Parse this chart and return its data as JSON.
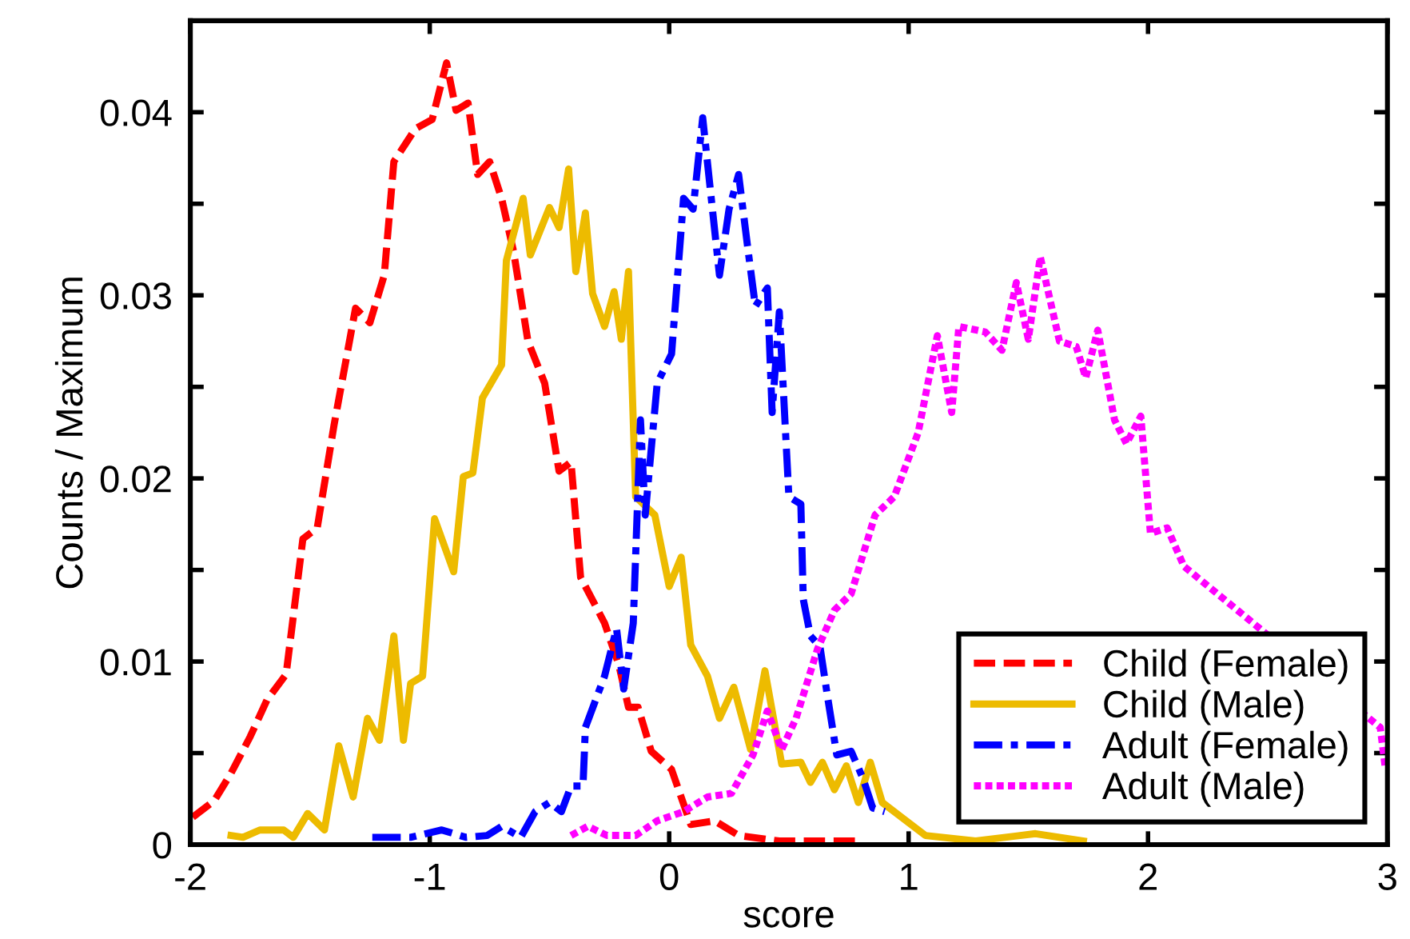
{
  "chart_data": {
    "type": "line",
    "xlabel": "score",
    "ylabel": "Counts / Maximum",
    "xlim": [
      -2,
      3
    ],
    "xticks": [
      -2,
      -1,
      0,
      1,
      2,
      3
    ],
    "ylim": [
      0,
      0.045
    ],
    "yticks": [
      0,
      {
        "value": 0.005,
        "label": null
      },
      0.01,
      {
        "value": 0.015,
        "label": null
      },
      0.02,
      {
        "value": 0.025,
        "label": null
      },
      0.03,
      {
        "value": 0.035,
        "label": null
      },
      0.04
    ],
    "grid": false,
    "legend": "bottom right",
    "marker": "none",
    "series": [
      {
        "name": "Child (Female)",
        "color": "#ff0000",
        "line_style": "dashed",
        "x": [
          -1.99,
          -1.9,
          -1.83,
          -1.75,
          -1.68,
          -1.6,
          -1.53,
          -1.47,
          -1.4,
          -1.31,
          -1.25,
          -1.19,
          -1.15,
          -1.06,
          -0.99,
          -0.93,
          -0.89,
          -0.84,
          -0.8,
          -0.75,
          -0.7,
          -0.65,
          -0.59,
          -0.52,
          -0.46,
          -0.41,
          -0.37,
          -0.27,
          -0.21,
          -0.17,
          -0.13,
          -0.075,
          0.01,
          0.09,
          0.19,
          0.29,
          0.46,
          0.79
        ],
        "values": [
          0.0015,
          0.0024,
          0.0039,
          0.0059,
          0.0079,
          0.0093,
          0.0167,
          0.0173,
          0.0229,
          0.0293,
          0.0285,
          0.0311,
          0.0373,
          0.0391,
          0.0396,
          0.0427,
          0.0401,
          0.0405,
          0.0366,
          0.0373,
          0.0353,
          0.0324,
          0.0275,
          0.0252,
          0.0204,
          0.0209,
          0.0146,
          0.0121,
          0.0098,
          0.0075,
          0.0075,
          0.0051,
          0.0041,
          0.0011,
          0.0013,
          0.0005,
          0.0002,
          0.0002
        ]
      },
      {
        "name": "Child (Male)",
        "color": "#edbb00",
        "line_style": "solid",
        "x": [
          -1.83,
          -1.78,
          -1.71,
          -1.61,
          -1.57,
          -1.51,
          -1.44,
          -1.38,
          -1.32,
          -1.26,
          -1.21,
          -1.15,
          -1.11,
          -1.08,
          -1.03,
          -0.98,
          -0.9,
          -0.86,
          -0.82,
          -0.78,
          -0.7,
          -0.68,
          -0.61,
          -0.58,
          -0.5,
          -0.46,
          -0.42,
          -0.39,
          -0.35,
          -0.32,
          -0.27,
          -0.23,
          -0.2,
          -0.17,
          -0.14,
          -0.06,
          0.0,
          0.05,
          0.09,
          0.16,
          0.21,
          0.27,
          0.34,
          0.4,
          0.47,
          0.55,
          0.59,
          0.64,
          0.69,
          0.74,
          0.79,
          0.84,
          0.89,
          1.07,
          1.28,
          1.53,
          1.73
        ],
        "values": [
          0.0005,
          0.0004,
          0.0008,
          0.0008,
          0.0004,
          0.0017,
          0.0008,
          0.0054,
          0.0026,
          0.0069,
          0.0057,
          0.0114,
          0.0057,
          0.0088,
          0.0092,
          0.0178,
          0.0149,
          0.0201,
          0.0203,
          0.0244,
          0.0262,
          0.0319,
          0.0353,
          0.0322,
          0.0348,
          0.0337,
          0.0369,
          0.0313,
          0.0345,
          0.0301,
          0.0283,
          0.0302,
          0.0276,
          0.0313,
          0.019,
          0.018,
          0.0141,
          0.0157,
          0.0109,
          0.0092,
          0.0069,
          0.0086,
          0.0052,
          0.0095,
          0.0044,
          0.0045,
          0.0034,
          0.0045,
          0.003,
          0.0043,
          0.0023,
          0.0045,
          0.0023,
          0.0005,
          0.0002,
          0.0006,
          0.0002
        ]
      },
      {
        "name": "Adult (Female)",
        "color": "#0000ff",
        "line_style": "dashdot",
        "x": [
          -1.24,
          -1.08,
          -0.95,
          -0.85,
          -0.76,
          -0.7,
          -0.62,
          -0.56,
          -0.5,
          -0.45,
          -0.41,
          -0.36,
          -0.35,
          -0.27,
          -0.22,
          -0.19,
          -0.15,
          -0.12,
          -0.1,
          -0.05,
          0.01,
          0.06,
          0.1,
          0.14,
          0.17,
          0.21,
          0.25,
          0.29,
          0.33,
          0.36,
          0.41,
          0.43,
          0.46,
          0.5,
          0.55,
          0.56,
          0.59,
          0.63,
          0.66,
          0.7,
          0.76,
          0.81,
          0.85,
          0.9
        ],
        "values": [
          0.0004,
          0.0004,
          0.0008,
          0.0004,
          0.0005,
          0.001,
          0.0004,
          0.0018,
          0.0023,
          0.0018,
          0.0032,
          0.0032,
          0.0064,
          0.0092,
          0.0118,
          0.0085,
          0.0121,
          0.0232,
          0.018,
          0.0252,
          0.0268,
          0.0353,
          0.0347,
          0.0397,
          0.036,
          0.0311,
          0.0347,
          0.0366,
          0.0324,
          0.0294,
          0.0304,
          0.0236,
          0.0291,
          0.019,
          0.0186,
          0.0134,
          0.0114,
          0.0108,
          0.0082,
          0.0049,
          0.0051,
          0.0036,
          0.002,
          0.0018
        ]
      },
      {
        "name": "Adult (Male)",
        "color": "#ff00ff",
        "line_style": "dotted",
        "x": [
          -0.41,
          -0.34,
          -0.26,
          -0.14,
          -0.05,
          0.06,
          0.16,
          0.26,
          0.35,
          0.41,
          0.47,
          0.53,
          0.62,
          0.69,
          0.76,
          0.86,
          0.94,
          1.04,
          1.12,
          1.18,
          1.21,
          1.32,
          1.39,
          1.45,
          1.5,
          1.55,
          1.63,
          1.7,
          1.74,
          1.79,
          1.86,
          1.91,
          1.97,
          2.01,
          2.08,
          2.15,
          2.97,
          2.99
        ],
        "values": [
          0.0005,
          0.001,
          0.0005,
          0.0005,
          0.0013,
          0.0018,
          0.0026,
          0.0028,
          0.0049,
          0.0073,
          0.0052,
          0.0069,
          0.0107,
          0.0128,
          0.0137,
          0.018,
          0.019,
          0.0225,
          0.0278,
          0.0236,
          0.0283,
          0.028,
          0.027,
          0.0307,
          0.0276,
          0.0321,
          0.0275,
          0.0272,
          0.0255,
          0.0281,
          0.0232,
          0.0219,
          0.0234,
          0.017,
          0.0173,
          0.0152,
          0.0064,
          0.0043
        ]
      }
    ]
  }
}
